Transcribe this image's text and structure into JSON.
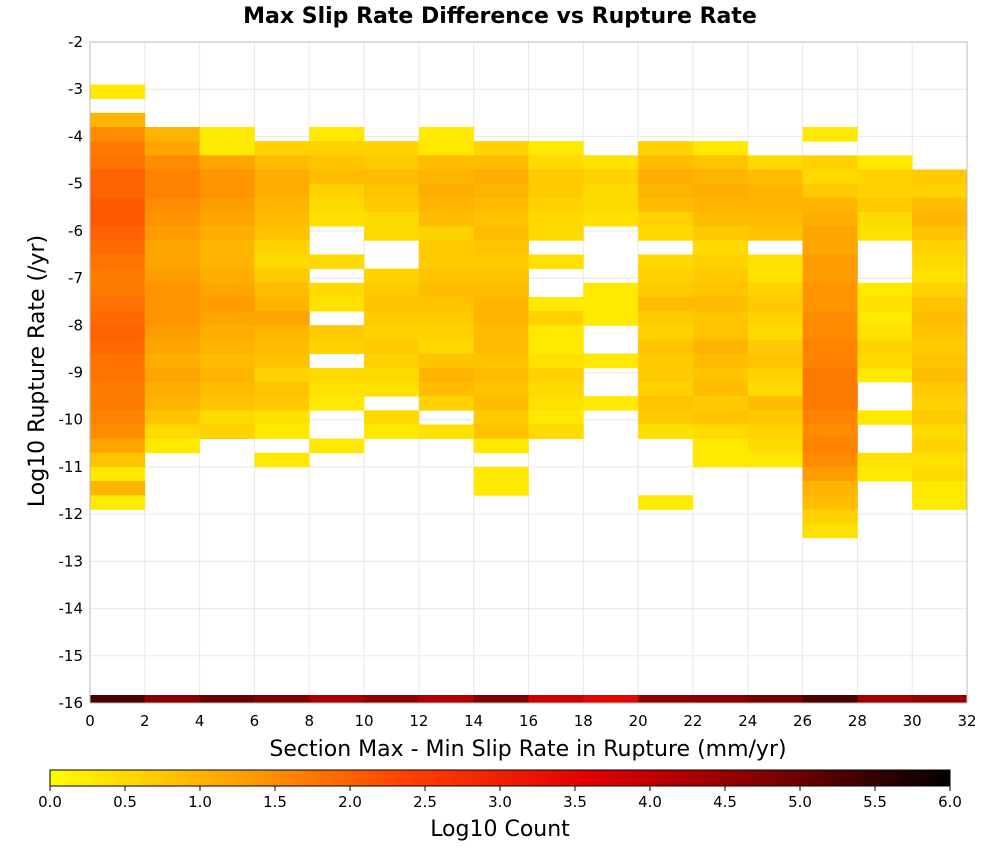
{
  "chart_data": {
    "type": "heatmap",
    "title": "Max Slip Rate Difference vs Rupture Rate",
    "xlabel": "Section Max - Min Slip Rate in Rupture (mm/yr)",
    "ylabel": "Log10 Rupture Rate (/yr)",
    "xlim": [
      0,
      32
    ],
    "ylim": [
      -16,
      -2
    ],
    "x_ticks": [
      0,
      2,
      4,
      6,
      8,
      10,
      12,
      14,
      16,
      18,
      20,
      22,
      24,
      26,
      28,
      30,
      32
    ],
    "y_ticks": [
      -2,
      -3,
      -4,
      -5,
      -6,
      -7,
      -8,
      -9,
      -10,
      -11,
      -12,
      -13,
      -14,
      -15,
      -16
    ],
    "grid": true,
    "x_bin_width": 2,
    "y_bin_height": 0.3,
    "y_grid_top": -2.9,
    "colorbar": {
      "label": "Log10 Count",
      "min": 0,
      "max": 6,
      "ticks": [
        "0.0",
        "0.5",
        "1.0",
        "1.5",
        "2.0",
        "2.5",
        "3.0",
        "3.5",
        "4.0",
        "4.5",
        "5.0",
        "5.5",
        "6.0"
      ],
      "colors": [
        "#ffff00",
        "#ffa500",
        "#ff4000",
        "#e00000",
        "#800000",
        "#000000"
      ]
    },
    "columns": [
      {
        "x": 1,
        "values": [
          0.3,
          null,
          1.0,
          1.5,
          1.7,
          1.8,
          2.0,
          2.0,
          2.1,
          2.1,
          2.0,
          1.9,
          1.8,
          1.7,
          1.7,
          1.8,
          1.9,
          2.0,
          1.9,
          1.8,
          1.8,
          1.7,
          1.7,
          1.6,
          1.5,
          1.2,
          0.8,
          0.3,
          1.0,
          0.3
        ]
      },
      {
        "x": 3,
        "values": [
          null,
          null,
          null,
          1.0,
          1.2,
          1.5,
          1.6,
          1.6,
          1.5,
          1.4,
          1.3,
          1.2,
          1.2,
          1.3,
          1.4,
          1.4,
          1.4,
          1.3,
          1.2,
          1.1,
          1.2,
          1.1,
          1.0,
          0.8,
          0.5,
          0.3
        ]
      },
      {
        "x": 5,
        "values": [
          null,
          null,
          null,
          0.3,
          0.3,
          1.2,
          1.4,
          1.4,
          1.3,
          1.2,
          1.1,
          1.0,
          1.0,
          1.1,
          1.2,
          1.3,
          1.2,
          1.1,
          1.0,
          0.9,
          1.0,
          0.9,
          0.8,
          0.5,
          0.6
        ]
      },
      {
        "x": 7,
        "values": [
          null,
          null,
          null,
          null,
          0.6,
          0.9,
          1.1,
          1.1,
          1.0,
          0.9,
          0.8,
          0.6,
          0.5,
          0.7,
          0.9,
          1.0,
          1.2,
          1.0,
          0.9,
          0.8,
          0.6,
          0.8,
          0.7,
          0.4,
          0.3,
          null,
          0.3
        ]
      },
      {
        "x": 9,
        "values": [
          null,
          null,
          null,
          0.3,
          0.6,
          0.8,
          0.9,
          0.6,
          0.5,
          0.4,
          null,
          null,
          0.5,
          null,
          0.5,
          0.4,
          null,
          0.7,
          0.6,
          null,
          0.5,
          0.4,
          0.3,
          null,
          null,
          0.3
        ]
      },
      {
        "x": 11,
        "values": [
          null,
          null,
          null,
          null,
          0.6,
          0.7,
          0.9,
          0.8,
          0.7,
          0.5,
          0.5,
          null,
          null,
          0.6,
          0.7,
          0.8,
          0.7,
          0.6,
          0.7,
          0.6,
          0.5,
          0.4,
          null,
          0.5,
          0.3
        ]
      },
      {
        "x": 13,
        "values": [
          null,
          null,
          null,
          0.3,
          0.3,
          0.9,
          1.0,
          1.1,
          1.0,
          0.9,
          0.6,
          0.7,
          0.7,
          0.8,
          0.9,
          0.8,
          0.7,
          0.6,
          0.5,
          0.8,
          1.0,
          0.9,
          0.6,
          null,
          0.4
        ]
      },
      {
        "x": 15,
        "values": [
          null,
          null,
          null,
          null,
          0.6,
          0.9,
          1.1,
          1.0,
          0.9,
          0.8,
          0.9,
          0.8,
          0.7,
          0.8,
          0.9,
          1.0,
          1.0,
          0.9,
          0.9,
          0.8,
          0.9,
          0.8,
          0.9,
          0.7,
          0.8,
          0.3,
          null,
          0.3,
          0.3
        ]
      },
      {
        "x": 17,
        "values": [
          null,
          null,
          null,
          null,
          0.3,
          0.5,
          0.7,
          0.7,
          0.6,
          0.5,
          0.5,
          null,
          0.4,
          null,
          null,
          0.3,
          0.6,
          0.3,
          0.3,
          0.4,
          0.6,
          0.5,
          0.4,
          0.3,
          0.5
        ]
      },
      {
        "x": 19,
        "values": [
          null,
          null,
          null,
          null,
          null,
          0.4,
          0.6,
          0.5,
          0.5,
          0.4,
          null,
          null,
          null,
          null,
          0.3,
          0.3,
          0.3,
          null,
          null,
          0.3,
          null,
          null,
          0.3
        ]
      },
      {
        "x": 21,
        "values": [
          null,
          null,
          null,
          null,
          0.6,
          0.9,
          1.1,
          1.0,
          0.9,
          0.6,
          0.5,
          null,
          0.5,
          0.6,
          0.7,
          0.9,
          0.7,
          0.6,
          0.8,
          0.7,
          0.7,
          0.6,
          0.8,
          0.7,
          0.4,
          null,
          null,
          null,
          null,
          0.3
        ]
      },
      {
        "x": 23,
        "values": [
          null,
          null,
          null,
          null,
          0.3,
          0.8,
          1.0,
          1.1,
          1.0,
          0.9,
          0.7,
          0.5,
          0.6,
          0.7,
          0.8,
          0.9,
          0.8,
          0.8,
          1.0,
          0.9,
          0.8,
          0.9,
          0.7,
          0.8,
          0.5,
          0.3,
          0.3
        ]
      },
      {
        "x": 25,
        "values": [
          null,
          null,
          null,
          null,
          null,
          0.5,
          0.9,
          1.0,
          1.0,
          0.9,
          0.8,
          null,
          0.4,
          0.4,
          0.6,
          0.7,
          0.6,
          0.5,
          0.7,
          0.8,
          0.6,
          0.5,
          0.9,
          0.7,
          0.6,
          0.5,
          0.3
        ]
      },
      {
        "x": 27,
        "values": [
          null,
          null,
          null,
          0.3,
          null,
          0.6,
          0.5,
          0.7,
          1.0,
          1.1,
          1.2,
          1.2,
          1.3,
          1.3,
          1.4,
          1.4,
          1.5,
          1.5,
          1.6,
          1.6,
          1.7,
          1.7,
          1.7,
          1.6,
          1.5,
          1.6,
          1.5,
          1.3,
          1.0,
          0.9,
          0.6,
          0.4
        ]
      },
      {
        "x": 29,
        "values": [
          null,
          null,
          null,
          null,
          null,
          0.3,
          0.6,
          0.6,
          0.7,
          0.5,
          0.4,
          null,
          null,
          null,
          0.3,
          0.4,
          0.3,
          0.4,
          0.6,
          0.5,
          0.3,
          null,
          null,
          0.3,
          null,
          null,
          0.4,
          0.3
        ]
      },
      {
        "x": 31,
        "values": [
          null,
          null,
          null,
          null,
          null,
          null,
          0.7,
          0.6,
          0.9,
          1.0,
          0.8,
          0.6,
          0.5,
          0.4,
          0.6,
          0.8,
          0.9,
          0.8,
          0.7,
          0.8,
          0.9,
          0.7,
          0.6,
          0.7,
          0.5,
          0.6,
          0.4,
          0.5,
          0.3,
          0.3
        ]
      }
    ],
    "bottom_row": {
      "y": -16,
      "values": [
        5.3,
        4.7,
        5.0,
        4.8,
        4.3,
        4.6,
        4.2,
        4.8,
        3.8,
        3.5,
        4.6,
        4.7,
        4.9,
        5.3,
        4.4,
        4.5
      ]
    }
  }
}
